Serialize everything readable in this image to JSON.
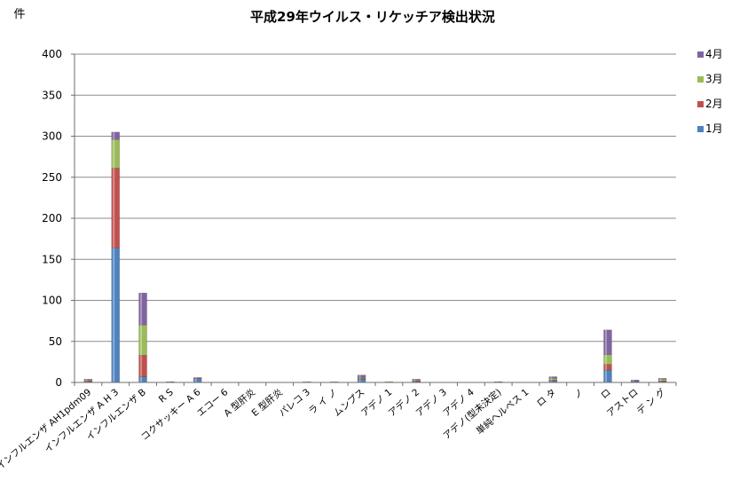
{
  "chart_data": {
    "type": "bar",
    "stacked": true,
    "title": "平成29年ウイルス・リケッチア検出状況",
    "ylabel": "件",
    "xlabel": "",
    "ylim": [
      0,
      400
    ],
    "yticks": [
      0,
      50,
      100,
      150,
      200,
      250,
      300,
      350,
      400
    ],
    "grid": true,
    "legend_position": "right",
    "categories": [
      "インフルエンザ AH1pdm09",
      "インフルエンザ A H 3",
      "インフルエンザ B",
      "R S",
      "コクサッキー A 6",
      "エコー 6",
      "A 型肝炎",
      "E 型肝炎",
      "パレコ 3",
      "ラ イ ノ",
      "ムンプス",
      "アデノ 1",
      "アデノ 2",
      "アデノ 3",
      "アデノ 4",
      "アデノ(型未決定)",
      "単純ヘルペス 1",
      "ロ タ",
      "ノ",
      "ロ",
      "アストロ",
      "デ ン グ"
    ],
    "series": [
      {
        "name": "1月",
        "color": "#4f81bd",
        "values": [
          1,
          164,
          7,
          1,
          5,
          0,
          0,
          0,
          0,
          0,
          4,
          0,
          1,
          0,
          0,
          0,
          0,
          2,
          0,
          15,
          1,
          1
        ]
      },
      {
        "name": "2月",
        "color": "#c0504d",
        "values": [
          1,
          97,
          26,
          0,
          1,
          0,
          0,
          0,
          0,
          0,
          1,
          0,
          1,
          0,
          0,
          0,
          0,
          1,
          0,
          7,
          0,
          1
        ]
      },
      {
        "name": "3月",
        "color": "#9bbb59",
        "values": [
          1,
          35,
          37,
          0,
          0,
          0,
          0,
          0,
          1,
          1,
          1,
          1,
          1,
          0,
          0,
          0,
          0,
          2,
          0,
          12,
          0,
          2
        ]
      },
      {
        "name": "4月",
        "color": "#8064a2",
        "values": [
          1,
          9,
          39,
          0,
          0,
          0,
          0,
          0,
          0,
          0,
          3,
          0,
          1,
          0,
          0,
          1,
          0,
          2,
          0,
          30,
          2,
          1
        ]
      }
    ]
  }
}
